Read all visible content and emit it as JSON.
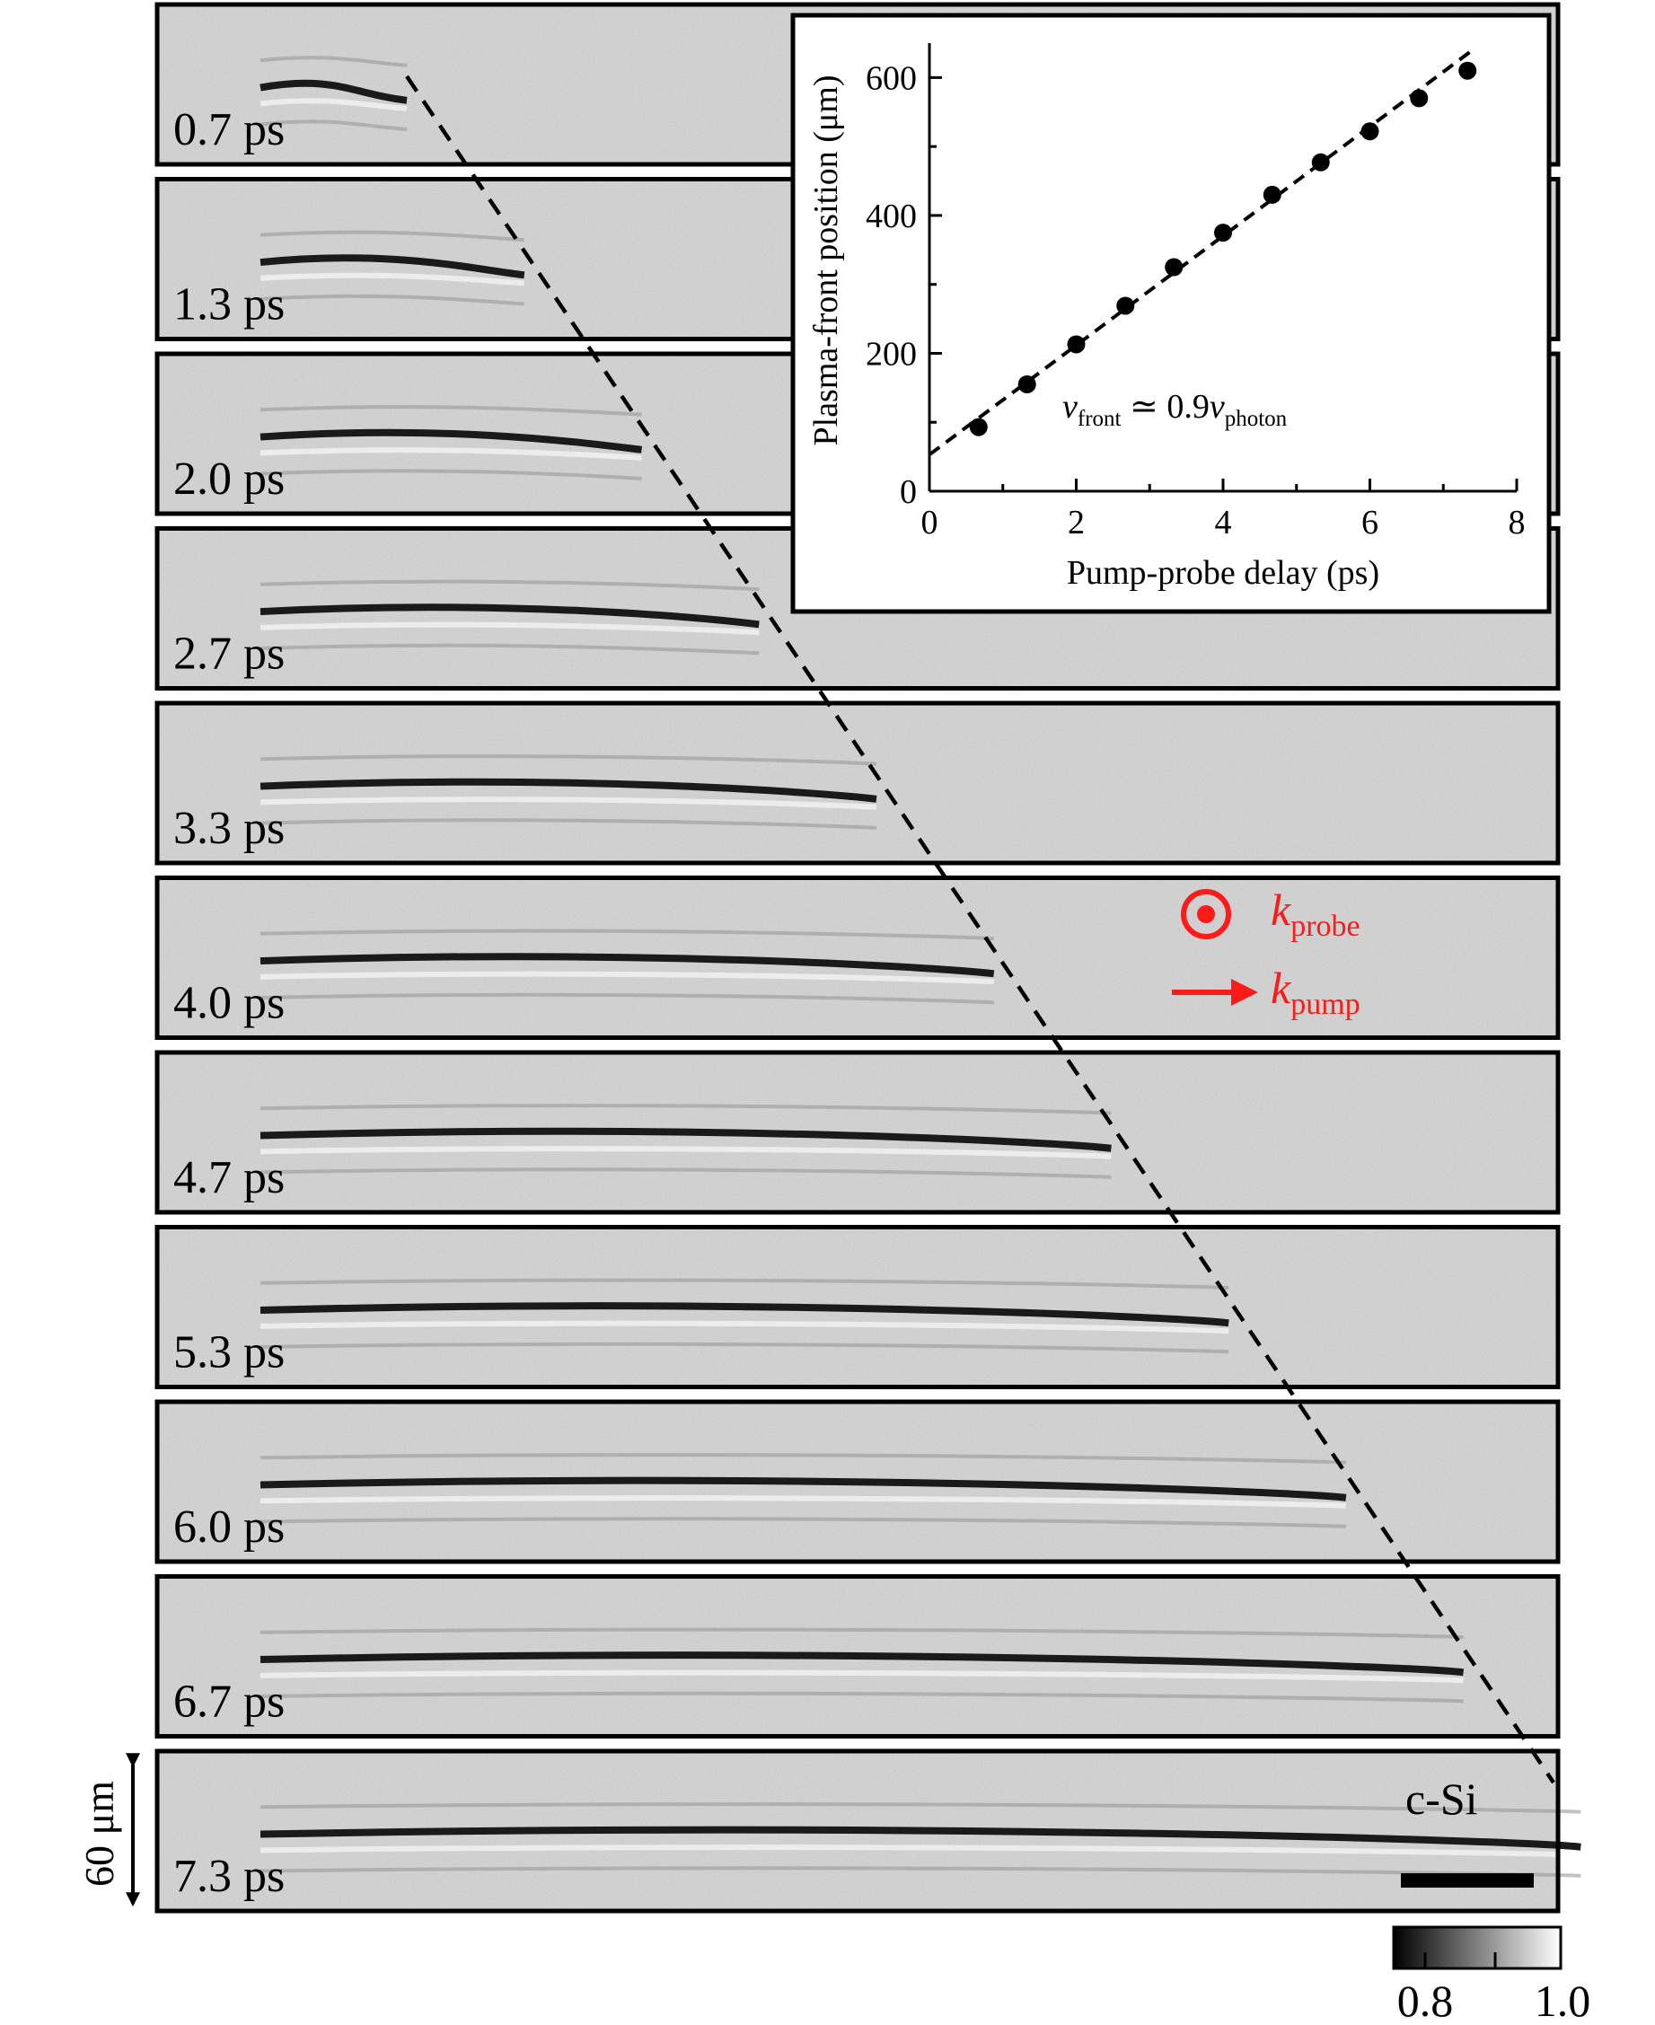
{
  "panels": {
    "delays": [
      "0.7 ps",
      "1.3 ps",
      "2.0 ps",
      "2.7 ps",
      "3.3 ps",
      "4.0 ps",
      "4.7 ps",
      "5.3 ps",
      "6.0 ps",
      "6.7 ps",
      "7.3 ps"
    ],
    "material_label": "c-Si",
    "height_scale_label": "60 μm"
  },
  "legend": {
    "k_symbol": "k",
    "probe_sub": "probe",
    "pump_sub": "pump",
    "color": "#ff1a1a"
  },
  "colorbar": {
    "min_label": "0.8",
    "max_label": "1.0"
  },
  "chart_data": {
    "type": "scatter",
    "xlabel": "Pump-probe delay (ps)",
    "ylabel": "Plasma-front position (μm)",
    "xlim": [
      0,
      8
    ],
    "ylim": [
      0,
      650
    ],
    "xticks": [
      0,
      2,
      4,
      6,
      8
    ],
    "yticks": [
      0,
      200,
      400,
      600
    ],
    "x": [
      0.67,
      1.33,
      2.0,
      2.67,
      3.33,
      4.0,
      4.67,
      5.33,
      6.0,
      6.67,
      7.33
    ],
    "y": [
      93,
      155,
      213,
      269,
      325,
      375,
      430,
      477,
      522,
      570,
      610
    ],
    "fit": {
      "style": "dashed",
      "x": [
        0,
        7.4
      ],
      "y": [
        53,
        640
      ]
    },
    "annotation": {
      "v": "v",
      "front_sub": "front",
      "relation": " ≃ 0.9",
      "photon_sub": "photon"
    },
    "grid": false,
    "legend": "none"
  }
}
